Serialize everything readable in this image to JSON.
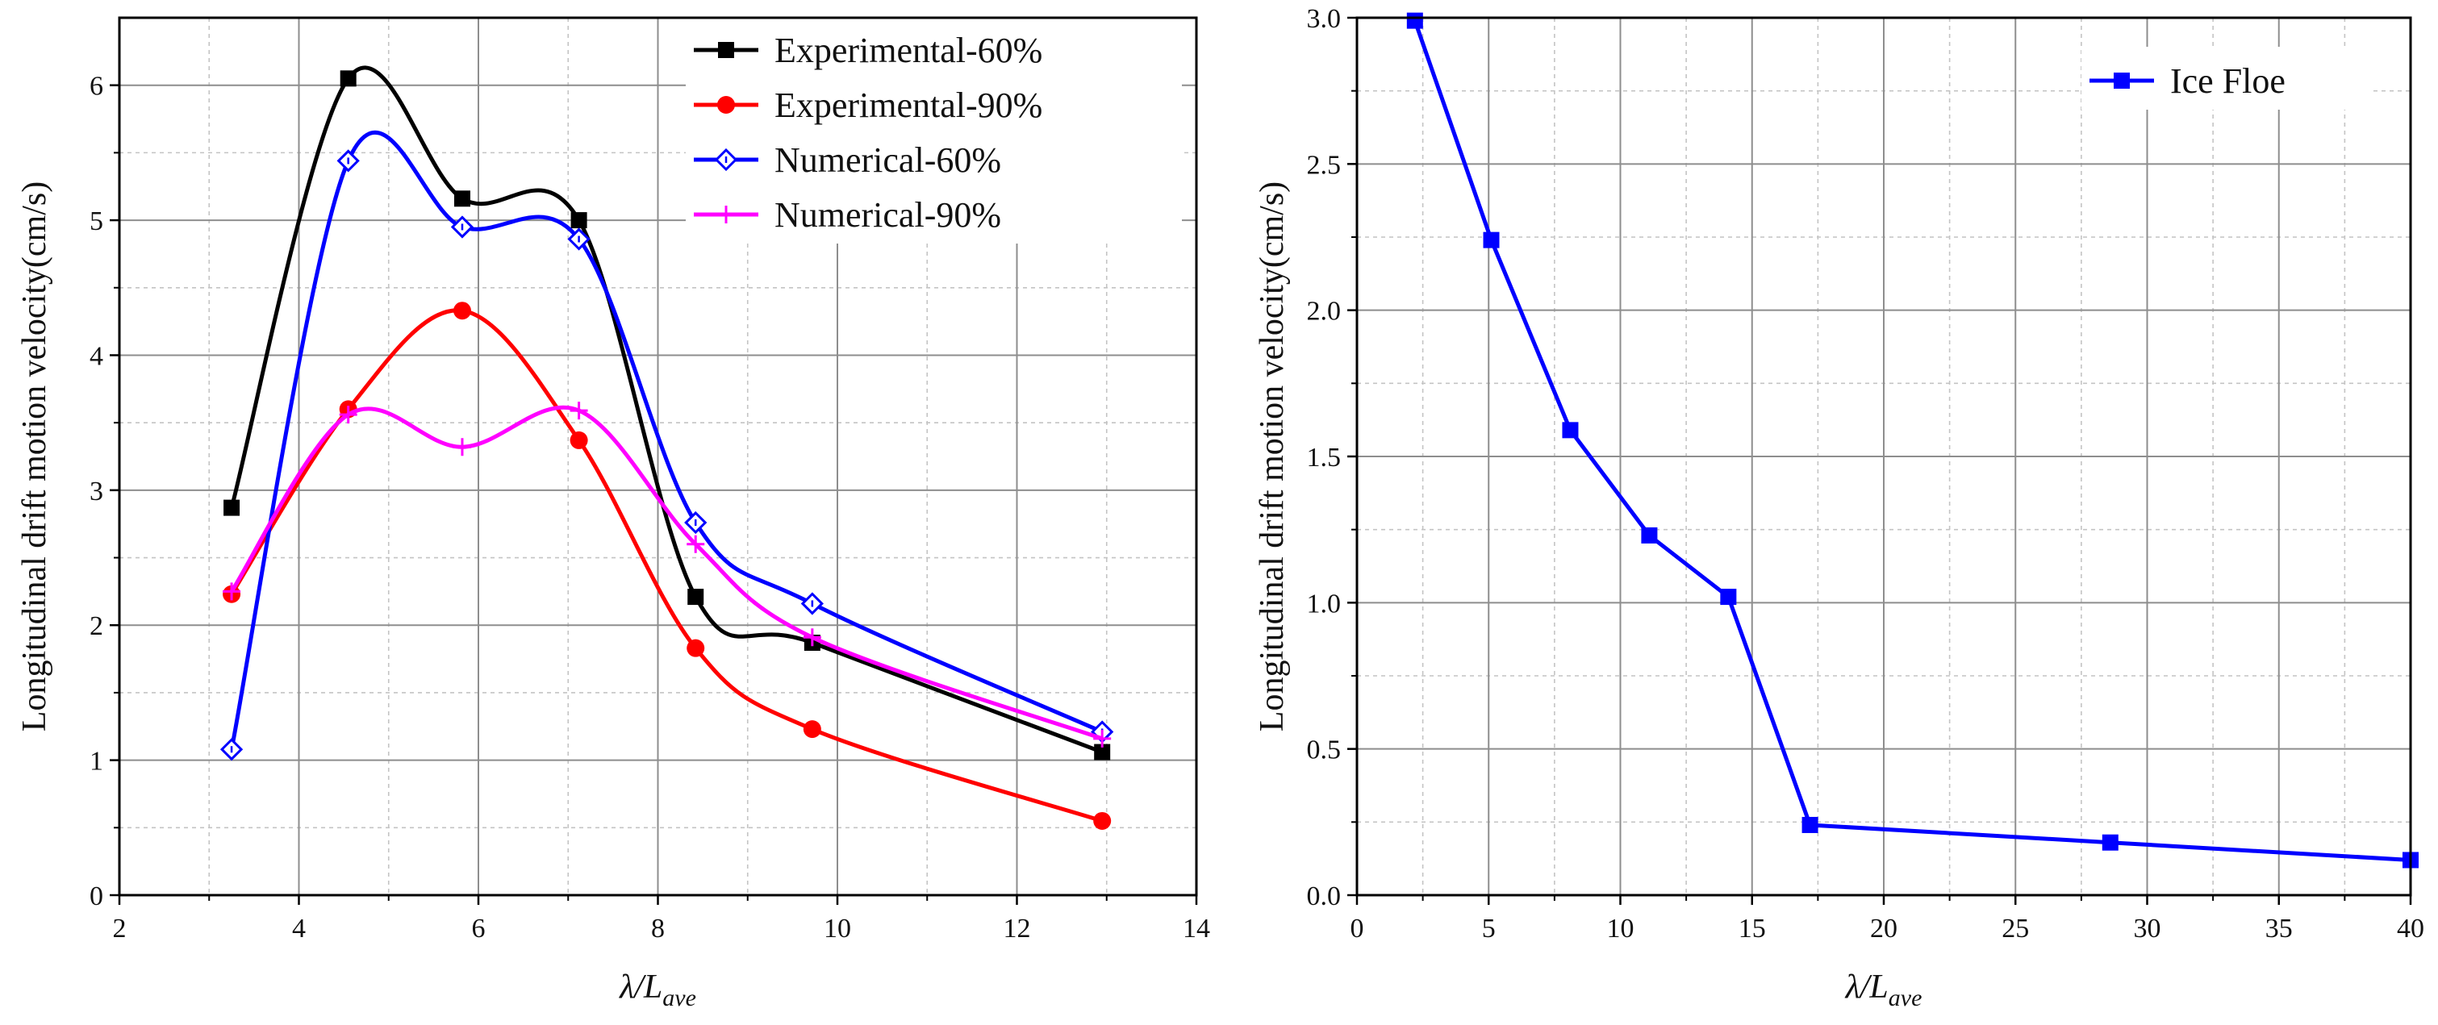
{
  "chart_data": [
    {
      "type": "line",
      "title": "",
      "xlabel": {
        "main": "λ/L",
        "sub": "ave"
      },
      "ylabel": "Longitudinal drift motion velocity(cm/s)",
      "xlim": [
        2,
        14
      ],
      "ylim": [
        0,
        6.5
      ],
      "xticks": [
        2,
        4,
        6,
        8,
        10,
        12,
        14
      ],
      "xtick_labels": [
        "2",
        "4",
        "6",
        "8",
        "10",
        "12",
        "14"
      ],
      "yticks": [
        0,
        1,
        2,
        3,
        4,
        5,
        6
      ],
      "ytick_labels": [
        "0",
        "1",
        "2",
        "3",
        "4",
        "5",
        "6"
      ],
      "grid": true,
      "legend_position": "top-right",
      "series": [
        {
          "name": "Experimental-60%",
          "color": "#000000",
          "marker": "filled-square",
          "x": [
            3.25,
            4.55,
            5.82,
            7.12,
            8.42,
            9.72,
            12.95
          ],
          "y": [
            2.87,
            6.05,
            5.16,
            5.0,
            2.21,
            1.87,
            1.06
          ]
        },
        {
          "name": "Experimental-90%",
          "color": "#ff0000",
          "marker": "filled-circle",
          "x": [
            3.25,
            4.55,
            5.82,
            7.12,
            8.42,
            9.72,
            12.95
          ],
          "y": [
            2.23,
            3.6,
            4.33,
            3.37,
            1.83,
            1.23,
            0.55
          ]
        },
        {
          "name": "Numerical-60%",
          "color": "#0000ff",
          "marker": "open-diamond",
          "x": [
            3.25,
            4.55,
            5.82,
            7.12,
            8.42,
            9.72,
            12.95
          ],
          "y": [
            1.08,
            5.44,
            4.95,
            4.86,
            2.76,
            2.16,
            1.21
          ]
        },
        {
          "name": "Numerical-90%",
          "color": "#ff00ff",
          "marker": "plus",
          "x": [
            3.25,
            4.55,
            5.82,
            7.12,
            8.42,
            9.72,
            12.95
          ],
          "y": [
            2.25,
            3.56,
            3.32,
            3.59,
            2.6,
            1.91,
            1.16
          ]
        }
      ]
    },
    {
      "type": "line",
      "title": "",
      "xlabel": {
        "main": "λ/L",
        "sub": "ave"
      },
      "ylabel": "Longitudinal drift motion velocity(cm/s)",
      "xlim": [
        0,
        40
      ],
      "ylim": [
        0,
        3.0
      ],
      "xticks": [
        0,
        5,
        10,
        15,
        20,
        25,
        30,
        35,
        40
      ],
      "xtick_labels": [
        "0",
        "5",
        "10",
        "15",
        "20",
        "25",
        "30",
        "35",
        "40"
      ],
      "yticks": [
        0,
        0.5,
        1.0,
        1.5,
        2.0,
        2.5,
        3.0
      ],
      "ytick_labels": [
        "0.0",
        "0.5",
        "1.0",
        "1.5",
        "2.0",
        "2.5",
        "3.0"
      ],
      "grid": true,
      "legend_position": "top-right",
      "series": [
        {
          "name": "Ice Floe",
          "color": "#0000ff",
          "marker": "filled-square",
          "x": [
            2.2,
            5.1,
            8.1,
            11.1,
            14.1,
            17.2,
            28.6,
            40.0
          ],
          "y": [
            2.99,
            2.24,
            1.59,
            1.23,
            1.02,
            0.24,
            0.18,
            0.12
          ]
        }
      ]
    }
  ]
}
